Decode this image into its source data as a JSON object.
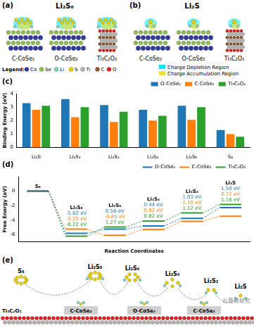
{
  "panels": {
    "a": {
      "label": "(a)",
      "title": "Li₂S₆",
      "structures": [
        "C-CoSe₂",
        "O-CoSe₂",
        "Ti₃C₂O₂"
      ]
    },
    "b": {
      "label": "(b)",
      "title": "Li₂S",
      "structures": [
        "C-CoSe₂",
        "O-CoSe₂",
        "Ti₃C₂O₂"
      ]
    },
    "legend": {
      "title": "Legend:",
      "atoms": [
        "Co",
        "Se",
        "Li",
        "S",
        "Ti",
        "C",
        "O"
      ],
      "regions": [
        "Charge Depletion Region",
        "Charge Accumulation Region"
      ]
    },
    "e": {
      "label": "(e)",
      "species": [
        "S₈",
        "Li₂S₈",
        "Li₂S₆",
        "Li₂S₄",
        "Li₂S₂",
        "Li₂S"
      ],
      "sites": [
        "C-CoSe₂",
        "O-CoSe₂",
        "C-CoSe₂"
      ],
      "substrate": "Ti₃C₂O₂",
      "watermark": "石墨烯研究"
    }
  },
  "chart_data": [
    {
      "type": "bar",
      "panel": "(c)",
      "y_label": "Binding Energy (eV)",
      "categories": [
        "Li₂S",
        "Li₂S₂",
        "Li₂S₄",
        "Li₂S₆",
        "Li₂S₈",
        "S₈"
      ],
      "series": [
        {
          "name": "O-CoSe₂",
          "color": "#1f77b4",
          "values": [
            3.3,
            3.6,
            3.15,
            2.8,
            3.1,
            1.3
          ]
        },
        {
          "name": "C-CoSe₂",
          "color": "#ff7f0e",
          "values": [
            2.8,
            2.25,
            1.9,
            2.0,
            2.05,
            1.0
          ]
        },
        {
          "name": "Ti₃C₂O₂",
          "color": "#2ca02c",
          "values": [
            3.1,
            3.0,
            2.65,
            2.35,
            3.0,
            0.8
          ]
        }
      ],
      "ylim": [
        0,
        4
      ],
      "yticks": [
        0,
        1,
        2,
        3,
        4
      ],
      "grid": false,
      "legend": "upper right"
    },
    {
      "type": "line",
      "panel": "(d)",
      "y_label": "Free Energy (eV)",
      "x_label": "Reaction Coordinates",
      "categories": [
        "S₈",
        "Li₂S₈",
        "Li₂S₆",
        "Li₂S₄",
        "Li₂S₂",
        "Li₂S"
      ],
      "series": [
        {
          "name": "O-CoSe₂",
          "color": "#1f77b4",
          "values": [
            0,
            -5.82,
            -5.24,
            -4.8,
            -3.77,
            -2.27
          ],
          "annotations": [
            "-5.82 eV",
            "0.58 eV",
            "0.44 eV",
            "1.03 eV",
            "1.50 eV"
          ]
        },
        {
          "name": "C-CoSe₂",
          "color": "#ff7f0e",
          "values": [
            0,
            -5.25,
            -6.1,
            -5.28,
            -4.18,
            -3.46
          ],
          "annotations": [
            "-5.25 eV",
            "-0.85 eV",
            "0.82 eV",
            "1.10 eV",
            "0.72 eV"
          ]
        },
        {
          "name": "Ti₃C₂O₂",
          "color": "#2ca02c",
          "values": [
            0,
            -6.22,
            -4.95,
            -4.13,
            -3.01,
            -1.85
          ],
          "annotations": [
            "-6.22 eV",
            "1.27 eV",
            "0.82 eV",
            "1.12 eV",
            "1.16 eV"
          ]
        }
      ],
      "ylim": [
        -7,
        2
      ],
      "yticks": [
        -6,
        -4,
        -2,
        0
      ],
      "grid": false,
      "legend": "upper right",
      "tick_labels": "y"
    }
  ]
}
